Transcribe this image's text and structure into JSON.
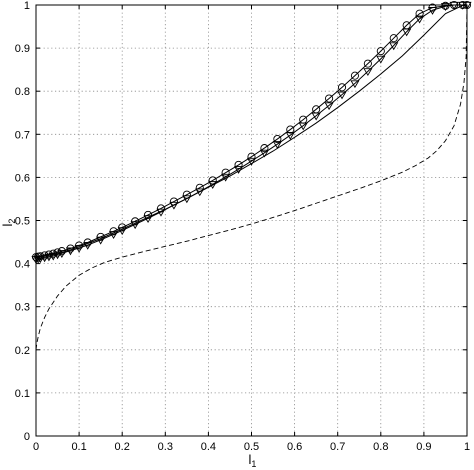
{
  "chart_data": {
    "type": "line",
    "title": "",
    "xlabel": {
      "base": "l",
      "sub": "1"
    },
    "ylabel": {
      "base": "l",
      "sub": "2"
    },
    "xlim": [
      0,
      1
    ],
    "ylim": [
      0,
      1
    ],
    "xticks": [
      "0",
      "0.1",
      "0.2",
      "0.3",
      "0.4",
      "0.5",
      "0.6",
      "0.7",
      "0.8",
      "0.9",
      "1"
    ],
    "yticks": [
      "0",
      "0.1",
      "0.2",
      "0.3",
      "0.4",
      "0.5",
      "0.6",
      "0.7",
      "0.8",
      "0.9",
      "1"
    ],
    "grid": true,
    "grid_style": "dotted",
    "legend": "none",
    "series": [
      {
        "style": "solid",
        "marker": "circle",
        "color": "#000000",
        "x": [
          0,
          0.005,
          0.01,
          0.02,
          0.03,
          0.04,
          0.05,
          0.06,
          0.08,
          0.1,
          0.12,
          0.15,
          0.18,
          0.2,
          0.23,
          0.26,
          0.29,
          0.32,
          0.35,
          0.38,
          0.41,
          0.44,
          0.47,
          0.5,
          0.53,
          0.56,
          0.59,
          0.62,
          0.65,
          0.68,
          0.71,
          0.74,
          0.77,
          0.8,
          0.83,
          0.86,
          0.89,
          0.92,
          0.95,
          0.97,
          0.99,
          1.0
        ],
        "y": [
          0.415,
          0.416,
          0.417,
          0.419,
          0.421,
          0.423,
          0.426,
          0.429,
          0.435,
          0.442,
          0.449,
          0.462,
          0.475,
          0.484,
          0.498,
          0.513,
          0.528,
          0.544,
          0.56,
          0.576,
          0.593,
          0.611,
          0.629,
          0.648,
          0.668,
          0.689,
          0.711,
          0.734,
          0.758,
          0.783,
          0.809,
          0.836,
          0.864,
          0.893,
          0.923,
          0.953,
          0.98,
          0.994,
          0.998,
          1.0,
          1.0,
          1.0
        ]
      },
      {
        "style": "solid",
        "marker": "none",
        "color": "#000000",
        "x": [
          0,
          0.01,
          0.03,
          0.05,
          0.08,
          0.1,
          0.15,
          0.2,
          0.25,
          0.3,
          0.35,
          0.4,
          0.45,
          0.5,
          0.55,
          0.6,
          0.65,
          0.7,
          0.75,
          0.8,
          0.85,
          0.9,
          0.95,
          0.99,
          1.0
        ],
        "y": [
          0.413,
          0.415,
          0.419,
          0.423,
          0.432,
          0.439,
          0.458,
          0.48,
          0.503,
          0.526,
          0.551,
          0.577,
          0.603,
          0.632,
          0.661,
          0.693,
          0.726,
          0.762,
          0.8,
          0.84,
          0.882,
          0.93,
          0.98,
          0.999,
          1.0
        ]
      },
      {
        "style": "solid",
        "marker": "triangle-down",
        "color": "#000000",
        "x": [
          0,
          0.005,
          0.01,
          0.02,
          0.03,
          0.04,
          0.05,
          0.06,
          0.08,
          0.1,
          0.12,
          0.15,
          0.18,
          0.2,
          0.23,
          0.26,
          0.29,
          0.32,
          0.35,
          0.38,
          0.41,
          0.44,
          0.47,
          0.5,
          0.53,
          0.56,
          0.59,
          0.62,
          0.65,
          0.68,
          0.71,
          0.74,
          0.77,
          0.8,
          0.83,
          0.86,
          0.89,
          0.92,
          0.95,
          0.97,
          0.99,
          1.0
        ],
        "y": [
          0.41,
          0.411,
          0.412,
          0.414,
          0.416,
          0.418,
          0.421,
          0.424,
          0.43,
          0.436,
          0.443,
          0.455,
          0.468,
          0.477,
          0.491,
          0.505,
          0.52,
          0.536,
          0.551,
          0.567,
          0.584,
          0.601,
          0.619,
          0.638,
          0.657,
          0.677,
          0.698,
          0.72,
          0.743,
          0.767,
          0.792,
          0.818,
          0.846,
          0.875,
          0.906,
          0.938,
          0.968,
          0.988,
          0.997,
          1.0,
          1.0,
          1.0
        ]
      },
      {
        "style": "dashed",
        "marker": "none",
        "color": "#000000",
        "x": [
          0,
          0.002,
          0.005,
          0.01,
          0.02,
          0.03,
          0.05,
          0.07,
          0.1,
          0.13,
          0.16,
          0.2,
          0.25,
          0.3,
          0.35,
          0.4,
          0.45,
          0.5,
          0.55,
          0.6,
          0.65,
          0.7,
          0.75,
          0.8,
          0.85,
          0.88,
          0.91,
          0.93,
          0.95,
          0.97,
          0.985,
          0.993,
          0.998,
          1.0
        ],
        "y": [
          0.2,
          0.215,
          0.23,
          0.25,
          0.275,
          0.295,
          0.325,
          0.348,
          0.373,
          0.39,
          0.403,
          0.415,
          0.428,
          0.44,
          0.452,
          0.465,
          0.478,
          0.492,
          0.507,
          0.523,
          0.54,
          0.557,
          0.574,
          0.592,
          0.612,
          0.627,
          0.645,
          0.662,
          0.685,
          0.72,
          0.77,
          0.82,
          0.88,
          1.0
        ]
      }
    ]
  }
}
